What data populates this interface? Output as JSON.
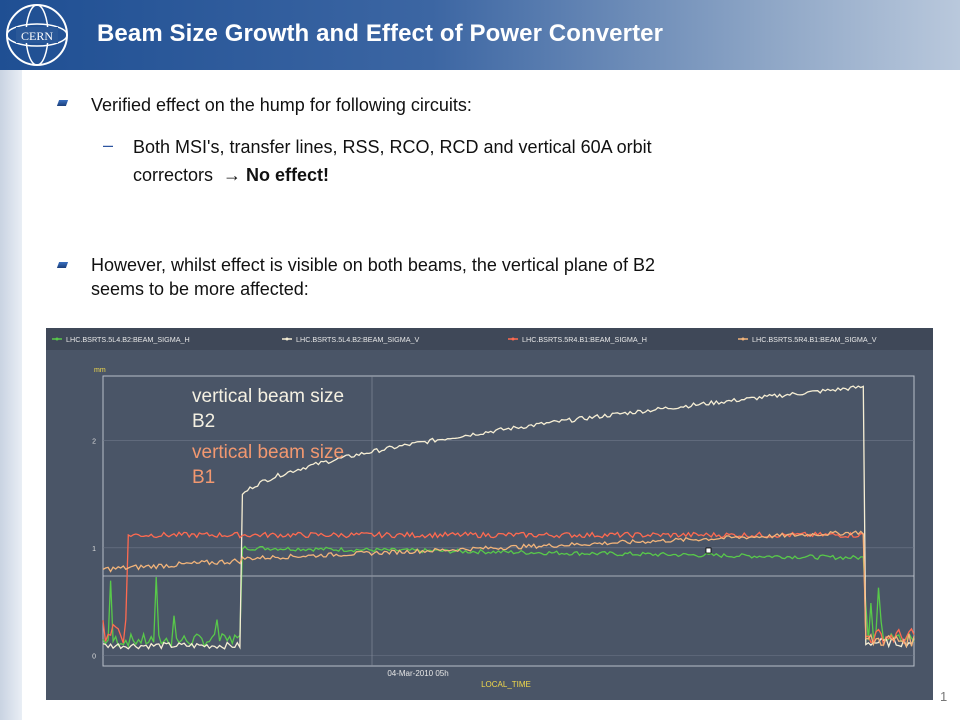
{
  "slide": {
    "title": "Beam Size Growth and Effect of Power Converter",
    "logo_text": "CERN",
    "page_number": "1"
  },
  "bullets": [
    {
      "text": "Verified effect on the hump for following circuits:"
    },
    {
      "text": "However, whilst effect is visible on both beams, the vertical plane of B2"
    },
    {
      "text": "seems to be more affected:"
    }
  ],
  "sub_bullet": {
    "dash": "–",
    "line1": "Both MSI's, transfer lines, RSS, RCO, RCD and vertical 60A orbit",
    "line2_prefix": "correctors  → ",
    "line2_bold": "No effect!"
  },
  "chart_data": {
    "type": "line",
    "legend_position": "top",
    "series": [
      {
        "name": "LHC.BSRTS.5L4.B2:BEAM_SIGMA_H",
        "color": "#58c94a"
      },
      {
        "name": "LHC.BSRTS.5L4.B2:BEAM_SIGMA_V",
        "color": "#f6eed4"
      },
      {
        "name": "LHC.BSRTS.5R4.B1:BEAM_SIGMA_H",
        "color": "#ff6a50"
      },
      {
        "name": "LHC.BSRTS.5R4.B1:BEAM_SIGMA_V",
        "color": "#f2b47a"
      }
    ],
    "y_unit": "mm",
    "y_ticks": [
      "0",
      "1",
      "2"
    ],
    "ylim": [
      -0.1,
      2.6
    ],
    "x_tick": "04-Mar-2010 05h",
    "xlabel": "LOCAL_TIME",
    "grid": true,
    "annotations": [
      {
        "line1": "vertical beam size",
        "line2": "B2",
        "color": "#f4f0e2"
      },
      {
        "line1": "vertical beam size",
        "line2": "B1",
        "color": "#f29870"
      }
    ]
  }
}
